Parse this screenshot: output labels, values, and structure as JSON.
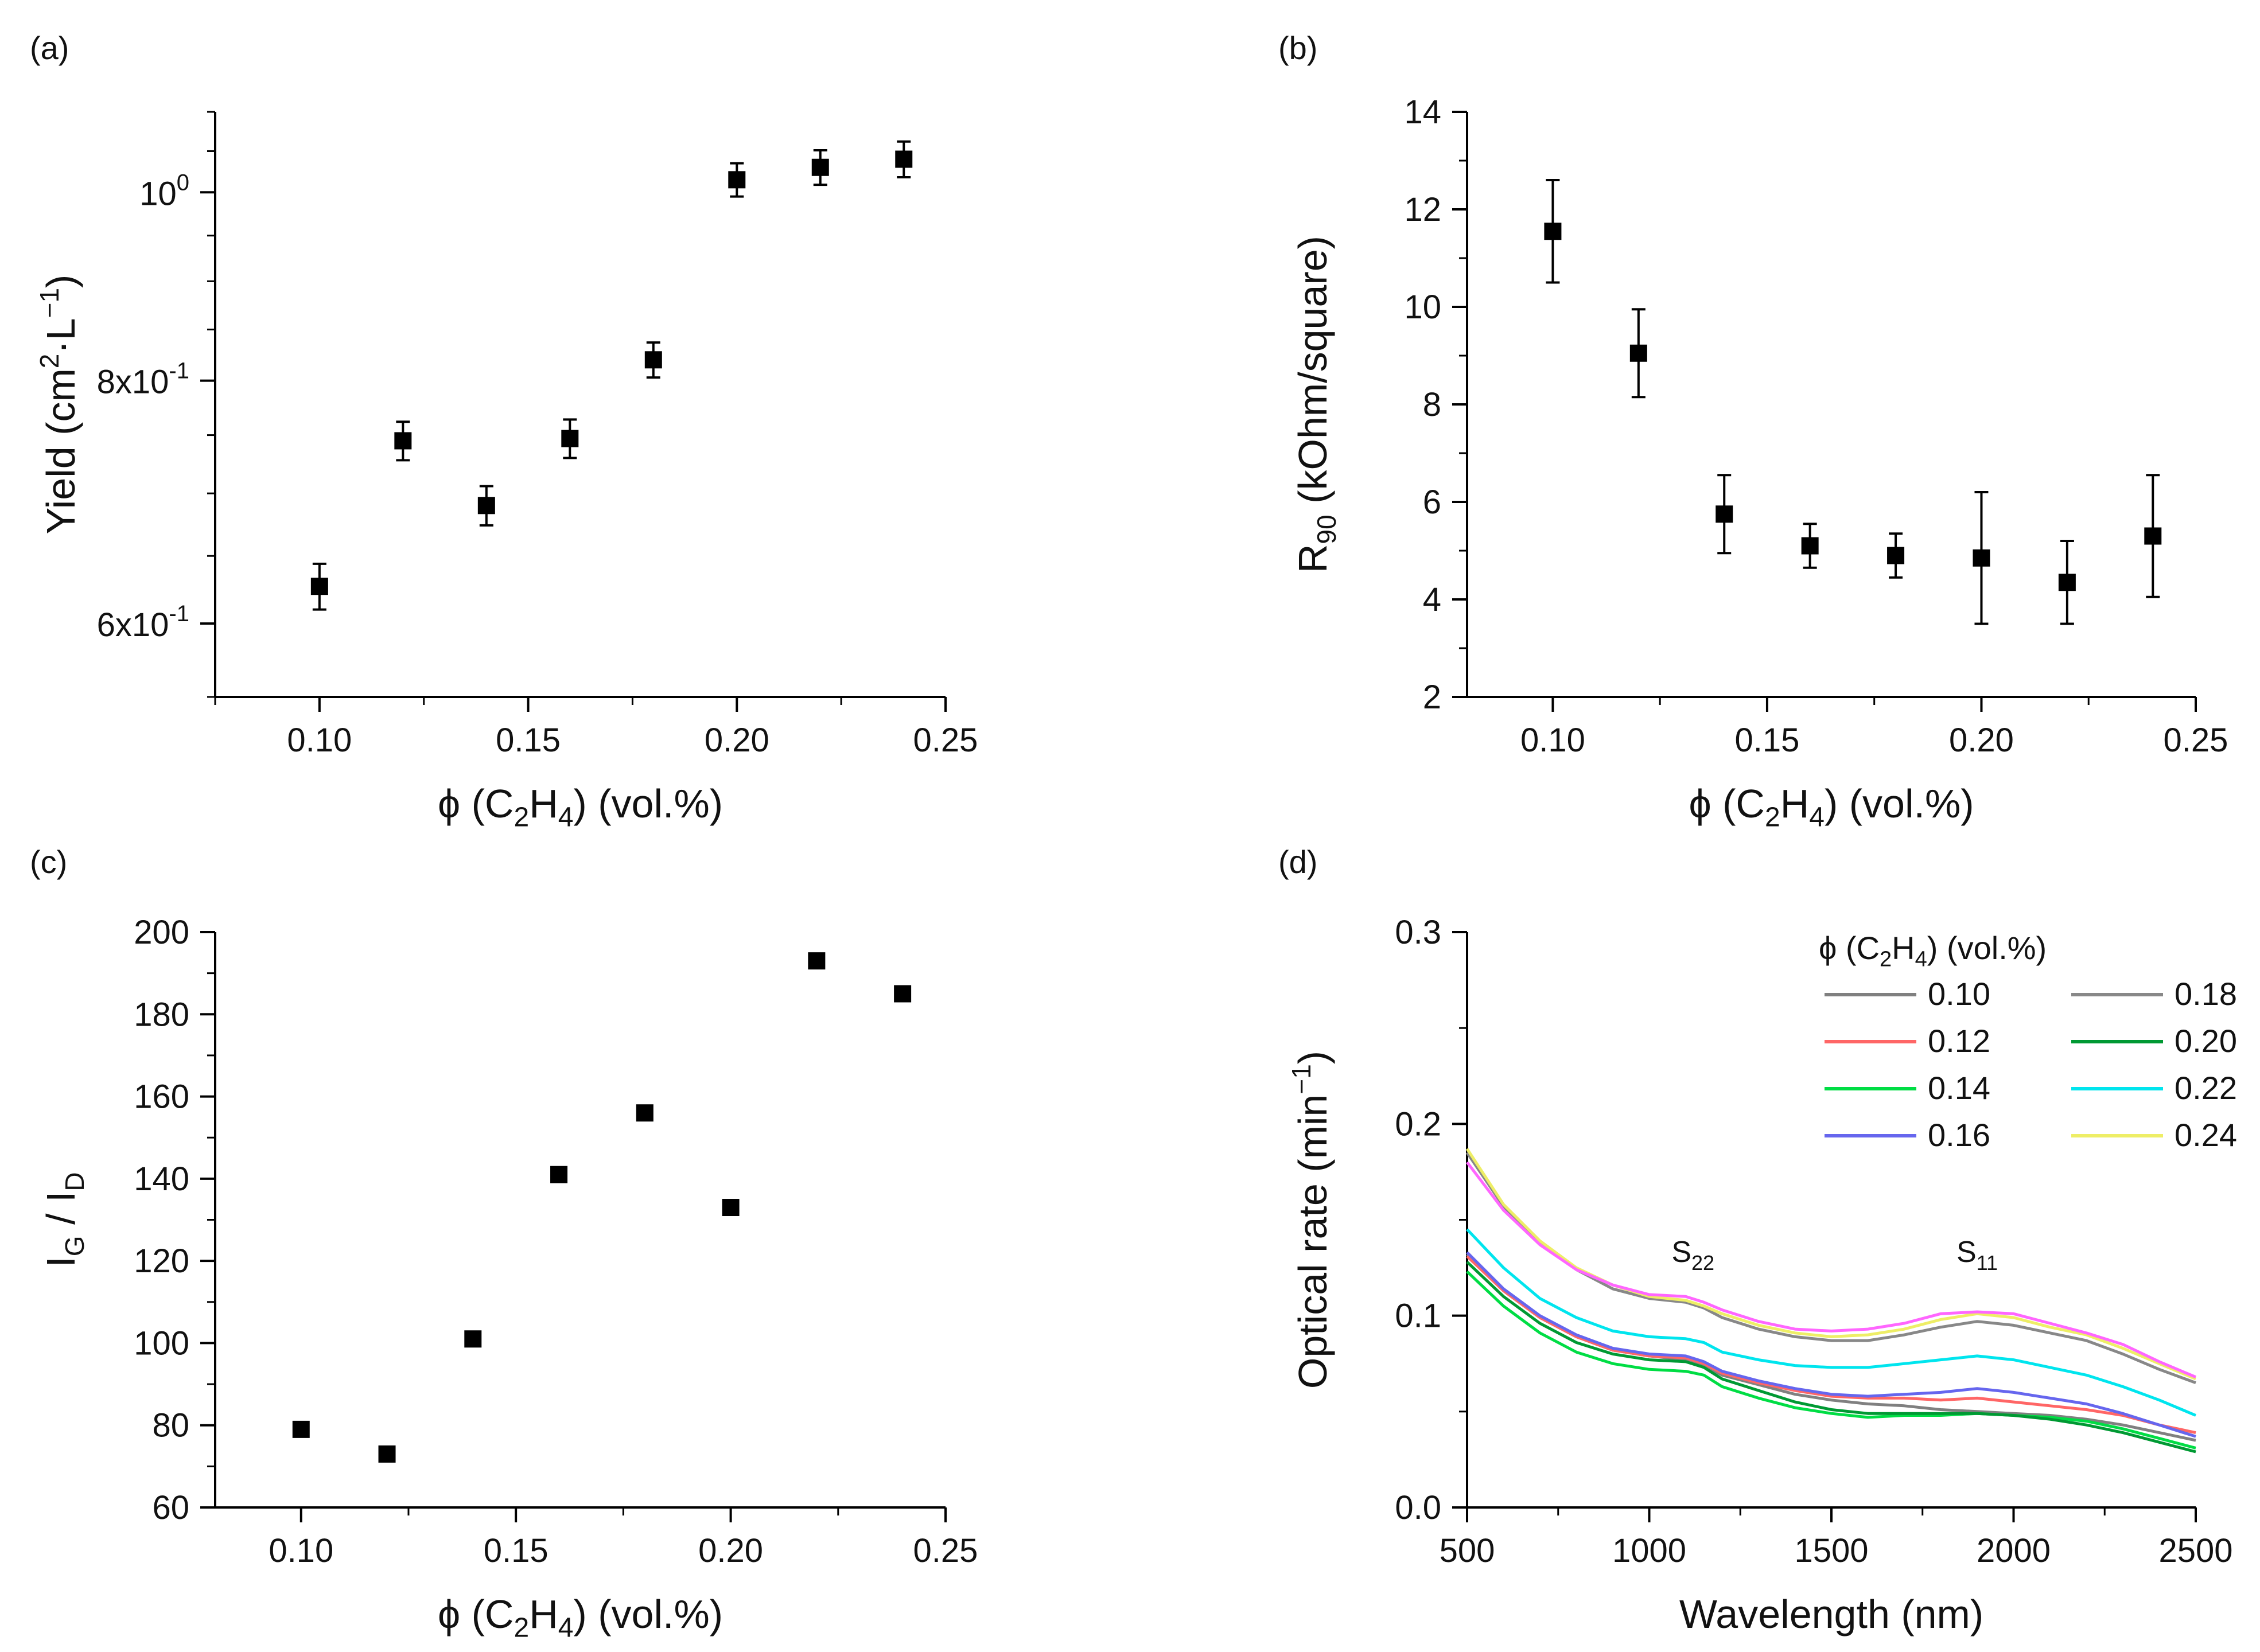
{
  "figure": {
    "colors": {
      "axis": "#000000",
      "marker": "#000000"
    }
  },
  "chart_data": [
    {
      "id": "a",
      "panel_label": "(a)",
      "type": "scatter",
      "y_scale": "log",
      "xlim": [
        0.075,
        0.25
      ],
      "ylim": [
        0.55,
        1.1
      ],
      "xlabel": "ϕ (C2H4) (vol.%)",
      "ylabel": "Yield (cm2·L−1)",
      "x_ticks": [
        0.1,
        0.15,
        0.2,
        0.25
      ],
      "x_tick_labels": [
        "0.10",
        "0.15",
        "0.20",
        "0.25"
      ],
      "y_ticks": [
        0.6,
        0.8,
        1.0
      ],
      "y_tick_labels": [
        [
          "6x10",
          "-1"
        ],
        [
          "8x10",
          "-1"
        ],
        [
          "10",
          "0"
        ]
      ],
      "y_minor_ticks": [
        0.55,
        0.65,
        0.7,
        0.75,
        0.85,
        0.9,
        0.95,
        1.05,
        1.1
      ],
      "x": [
        0.1,
        0.12,
        0.14,
        0.16,
        0.18,
        0.2,
        0.22,
        0.24
      ],
      "y": [
        0.627,
        0.745,
        0.69,
        0.747,
        0.82,
        1.015,
        1.03,
        1.04
      ],
      "yerr": [
        0.017,
        0.017,
        0.016,
        0.017,
        0.017,
        0.02,
        0.021,
        0.022
      ]
    },
    {
      "id": "b",
      "panel_label": "(b)",
      "type": "scatter",
      "xlim": [
        0.08,
        0.25
      ],
      "ylim": [
        2,
        14
      ],
      "xlabel": "ϕ (C2H4) (vol.%)",
      "ylabel": "R90 (kOhm/square)",
      "x_ticks": [
        0.1,
        0.15,
        0.2,
        0.25
      ],
      "x_tick_labels": [
        "0.10",
        "0.15",
        "0.20",
        "0.25"
      ],
      "y_ticks": [
        2,
        4,
        6,
        8,
        10,
        12,
        14
      ],
      "y_tick_labels": [
        "2",
        "4",
        "6",
        "8",
        "10",
        "12",
        "14"
      ],
      "x": [
        0.1,
        0.12,
        0.14,
        0.16,
        0.18,
        0.2,
        0.22,
        0.24
      ],
      "y": [
        11.55,
        9.05,
        5.75,
        5.1,
        4.9,
        4.85,
        4.35,
        5.3
      ],
      "yerr": [
        1.05,
        0.9,
        0.8,
        0.45,
        0.45,
        1.35,
        0.85,
        1.25
      ]
    },
    {
      "id": "c",
      "panel_label": "(c)",
      "type": "scatter",
      "xlim": [
        0.08,
        0.25
      ],
      "ylim": [
        60,
        200
      ],
      "xlabel": "ϕ (C2H4) (vol.%)",
      "ylabel": "IG / ID",
      "x_ticks": [
        0.1,
        0.15,
        0.2,
        0.25
      ],
      "x_tick_labels": [
        "0.10",
        "0.15",
        "0.20",
        "0.25"
      ],
      "y_ticks": [
        60,
        80,
        100,
        120,
        140,
        160,
        180,
        200
      ],
      "y_tick_labels": [
        "60",
        "80",
        "100",
        "120",
        "140",
        "160",
        "180",
        "200"
      ],
      "x": [
        0.1,
        0.12,
        0.14,
        0.16,
        0.18,
        0.2,
        0.22,
        0.24
      ],
      "y": [
        79,
        73,
        101,
        141,
        156,
        133,
        193,
        185
      ]
    },
    {
      "id": "d",
      "panel_label": "(d)",
      "type": "line",
      "xlim": [
        500,
        2500
      ],
      "ylim": [
        0,
        0.3
      ],
      "xlabel": "Wavelength (nm)",
      "ylabel": "Optical rate (min−1)",
      "x_ticks": [
        500,
        1000,
        1500,
        2000,
        2500
      ],
      "x_tick_labels": [
        "500",
        "1000",
        "1500",
        "2000",
        "2500"
      ],
      "y_ticks": [
        0,
        0.1,
        0.2,
        0.3
      ],
      "y_tick_labels": [
        "0.0",
        "0.1",
        "0.2",
        "0.3"
      ],
      "legend_title": "ϕ (C2H4) (vol.%)",
      "annotations": [
        {
          "text": "S22",
          "x": 1120,
          "y": 0.128
        },
        {
          "text": "S11",
          "x": 1900,
          "y": 0.128
        }
      ],
      "x": [
        500,
        600,
        700,
        800,
        900,
        1000,
        1100,
        1150,
        1200,
        1300,
        1400,
        1500,
        1600,
        1700,
        1800,
        1900,
        2000,
        2100,
        2200,
        2300,
        2400,
        2500
      ],
      "series": [
        {
          "name": "0.10",
          "color": "#808080",
          "values": [
            0.132,
            0.113,
            0.099,
            0.089,
            0.082,
            0.079,
            0.077,
            0.074,
            0.069,
            0.064,
            0.059,
            0.056,
            0.054,
            0.053,
            0.051,
            0.05,
            0.049,
            0.048,
            0.046,
            0.043,
            0.039,
            0.035
          ]
        },
        {
          "name": "0.12",
          "color": "#ff6666",
          "values": [
            0.131,
            0.113,
            0.099,
            0.089,
            0.082,
            0.079,
            0.078,
            0.075,
            0.07,
            0.065,
            0.061,
            0.058,
            0.057,
            0.057,
            0.056,
            0.057,
            0.055,
            0.053,
            0.051,
            0.048,
            0.043,
            0.039
          ]
        },
        {
          "name": "0.14",
          "color": "#00dd44",
          "values": [
            0.123,
            0.105,
            0.091,
            0.081,
            0.075,
            0.072,
            0.071,
            0.069,
            0.063,
            0.057,
            0.052,
            0.049,
            0.047,
            0.048,
            0.048,
            0.049,
            0.048,
            0.047,
            0.045,
            0.041,
            0.036,
            0.031
          ]
        },
        {
          "name": "0.16",
          "color": "#6666ee",
          "values": [
            0.133,
            0.114,
            0.1,
            0.09,
            0.083,
            0.08,
            0.079,
            0.076,
            0.071,
            0.066,
            0.062,
            0.059,
            0.058,
            0.059,
            0.06,
            0.062,
            0.06,
            0.057,
            0.054,
            0.049,
            0.043,
            0.037
          ]
        },
        {
          "name": "0.18",
          "color": "#888888",
          "values": [
            0.185,
            0.157,
            0.138,
            0.124,
            0.114,
            0.109,
            0.107,
            0.104,
            0.099,
            0.093,
            0.089,
            0.087,
            0.087,
            0.09,
            0.094,
            0.097,
            0.095,
            0.091,
            0.087,
            0.08,
            0.072,
            0.065
          ]
        },
        {
          "name": "0.20",
          "color": "#009933",
          "values": [
            0.128,
            0.11,
            0.096,
            0.086,
            0.08,
            0.077,
            0.076,
            0.073,
            0.067,
            0.061,
            0.055,
            0.051,
            0.049,
            0.049,
            0.049,
            0.049,
            0.048,
            0.046,
            0.043,
            0.039,
            0.034,
            0.029
          ]
        },
        {
          "name": "0.22",
          "color": "#00e5ee",
          "values": [
            0.145,
            0.125,
            0.109,
            0.099,
            0.092,
            0.089,
            0.088,
            0.086,
            0.081,
            0.077,
            0.074,
            0.073,
            0.073,
            0.075,
            0.077,
            0.079,
            0.077,
            0.073,
            0.069,
            0.063,
            0.056,
            0.048
          ]
        },
        {
          "name": "0.24",
          "color": "#eeee66",
          "values": [
            0.187,
            0.158,
            0.139,
            0.125,
            0.116,
            0.11,
            0.108,
            0.105,
            0.101,
            0.095,
            0.091,
            0.089,
            0.09,
            0.093,
            0.098,
            0.101,
            0.099,
            0.094,
            0.09,
            0.083,
            0.075,
            0.067
          ]
        },
        {
          "name": "",
          "color": "#ff66ff",
          "values": [
            0.18,
            0.155,
            0.137,
            0.124,
            0.116,
            0.111,
            0.11,
            0.107,
            0.103,
            0.097,
            0.093,
            0.092,
            0.093,
            0.096,
            0.101,
            0.102,
            0.101,
            0.096,
            0.091,
            0.085,
            0.076,
            0.068
          ]
        }
      ]
    }
  ]
}
